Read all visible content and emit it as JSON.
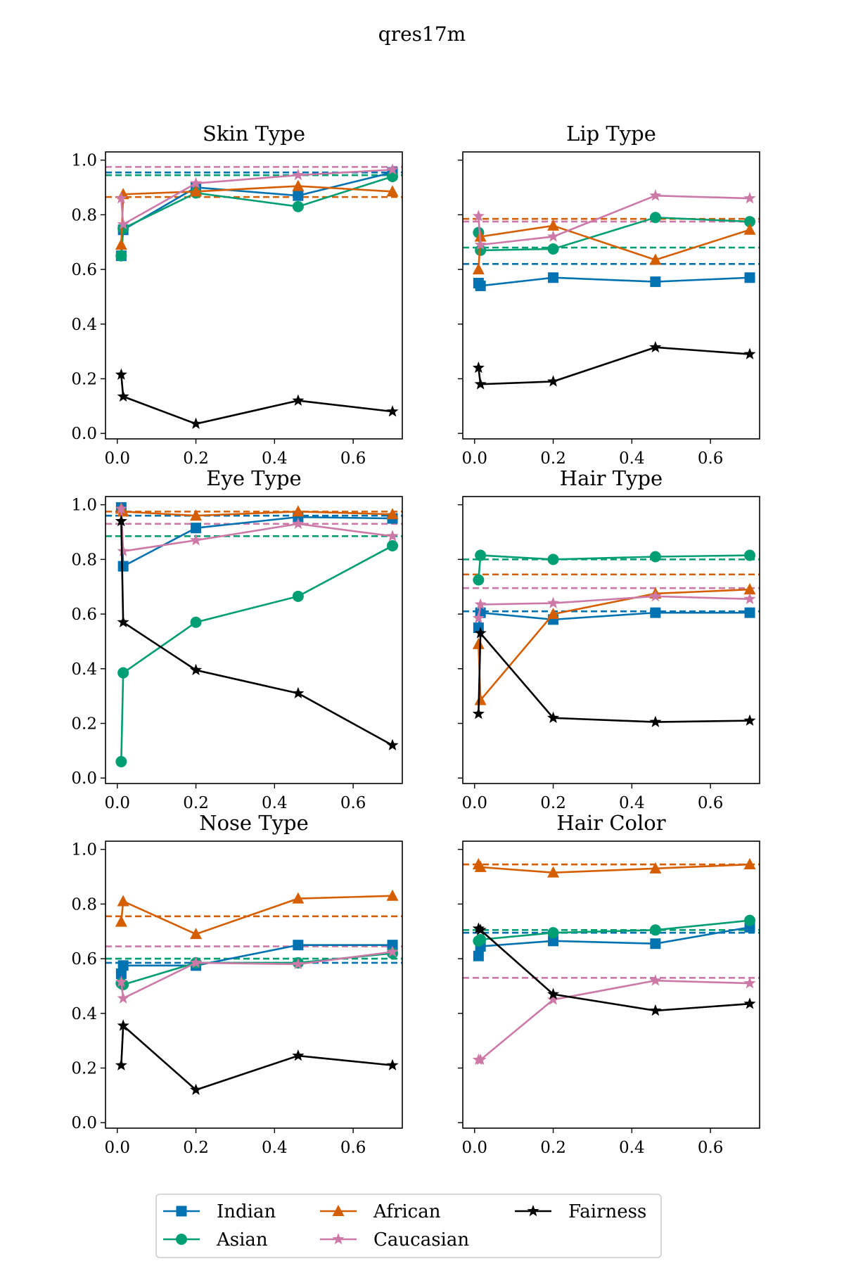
{
  "figure": {
    "title": "qres17m"
  },
  "legend": {
    "placement": "bottom-center",
    "columns": 3,
    "items": [
      {
        "name": "Indian",
        "color": "#0072b2",
        "marker": "square"
      },
      {
        "name": "African",
        "color": "#d55e00",
        "marker": "triangle"
      },
      {
        "name": "Fairness",
        "color": "#000000",
        "marker": "star"
      },
      {
        "name": "Asian",
        "color": "#009e73",
        "marker": "circle"
      },
      {
        "name": "Caucasian",
        "color": "#cc79a7",
        "marker": "star"
      }
    ]
  },
  "chart_data": [
    {
      "type": "line",
      "title": "Skin Type",
      "xlim": [
        -0.03,
        0.725
      ],
      "ylim": [
        -0.02,
        1.03
      ],
      "xticks": [
        "0.0",
        "0.2",
        "0.4",
        "0.6"
      ],
      "yticks": [
        "0.0",
        "0.2",
        "0.4",
        "0.6",
        "0.8",
        "1.0"
      ],
      "x": [
        0.01,
        0.015,
        0.2,
        0.46,
        0.7
      ],
      "series": [
        {
          "name": "Indian",
          "values": [
            0.65,
            0.745,
            0.9,
            0.87,
            0.955
          ],
          "baseline": 0.955
        },
        {
          "name": "Asian",
          "values": [
            0.65,
            0.75,
            0.88,
            0.83,
            0.94
          ],
          "baseline": 0.945
        },
        {
          "name": "African",
          "values": [
            0.69,
            0.875,
            0.885,
            0.905,
            0.885
          ],
          "baseline": 0.865
        },
        {
          "name": "Caucasian",
          "values": [
            0.86,
            0.765,
            0.915,
            0.945,
            0.965
          ],
          "baseline": 0.975
        },
        {
          "name": "Fairness",
          "values": [
            0.215,
            0.135,
            0.035,
            0.12,
            0.08
          ]
        }
      ]
    },
    {
      "type": "line",
      "title": "Lip Type",
      "xlim": [
        -0.03,
        0.725
      ],
      "ylim": [
        -0.02,
        1.03
      ],
      "xticks": [
        "0.0",
        "0.2",
        "0.4",
        "0.6"
      ],
      "yticks": [
        "0.0",
        "0.2",
        "0.4",
        "0.6",
        "0.8",
        "1.0"
      ],
      "x": [
        0.01,
        0.015,
        0.2,
        0.46,
        0.7
      ],
      "series": [
        {
          "name": "Indian",
          "values": [
            0.55,
            0.54,
            0.57,
            0.555,
            0.57
          ],
          "baseline": 0.62
        },
        {
          "name": "Asian",
          "values": [
            0.735,
            0.67,
            0.675,
            0.79,
            0.775
          ],
          "baseline": 0.68
        },
        {
          "name": "African",
          "values": [
            0.6,
            0.72,
            0.76,
            0.635,
            0.745
          ],
          "baseline": 0.785
        },
        {
          "name": "Caucasian",
          "values": [
            0.795,
            0.69,
            0.72,
            0.87,
            0.86
          ],
          "baseline": 0.775
        },
        {
          "name": "Fairness",
          "values": [
            0.24,
            0.18,
            0.19,
            0.315,
            0.29
          ]
        }
      ]
    },
    {
      "type": "line",
      "title": "Eye Type",
      "xlim": [
        -0.03,
        0.725
      ],
      "ylim": [
        -0.02,
        1.03
      ],
      "xticks": [
        "0.0",
        "0.2",
        "0.4",
        "0.6"
      ],
      "yticks": [
        "0.0",
        "0.2",
        "0.4",
        "0.6",
        "0.8",
        "1.0"
      ],
      "x": [
        0.01,
        0.015,
        0.2,
        0.46,
        0.7
      ],
      "series": [
        {
          "name": "Indian",
          "values": [
            0.99,
            0.775,
            0.915,
            0.955,
            0.95
          ],
          "baseline": 0.96
        },
        {
          "name": "Asian",
          "values": [
            0.06,
            0.385,
            0.57,
            0.665,
            0.85
          ],
          "baseline": 0.885
        },
        {
          "name": "African",
          "values": [
            0.985,
            0.975,
            0.96,
            0.975,
            0.965
          ],
          "baseline": 0.975
        },
        {
          "name": "Caucasian",
          "values": [
            0.985,
            0.83,
            0.87,
            0.93,
            0.885
          ],
          "baseline": 0.93
        },
        {
          "name": "Fairness",
          "values": [
            0.94,
            0.57,
            0.395,
            0.31,
            0.12
          ]
        }
      ]
    },
    {
      "type": "line",
      "title": "Hair Type",
      "xlim": [
        -0.03,
        0.725
      ],
      "ylim": [
        -0.02,
        1.03
      ],
      "xticks": [
        "0.0",
        "0.2",
        "0.4",
        "0.6"
      ],
      "yticks": [
        "0.0",
        "0.2",
        "0.4",
        "0.6",
        "0.8",
        "1.0"
      ],
      "x": [
        0.01,
        0.015,
        0.2,
        0.46,
        0.7
      ],
      "series": [
        {
          "name": "Indian",
          "values": [
            0.55,
            0.605,
            0.58,
            0.605,
            0.605
          ],
          "baseline": 0.61
        },
        {
          "name": "Asian",
          "values": [
            0.725,
            0.815,
            0.8,
            0.81,
            0.815
          ],
          "baseline": 0.8
        },
        {
          "name": "African",
          "values": [
            0.49,
            0.285,
            0.6,
            0.675,
            0.69
          ],
          "baseline": 0.745
        },
        {
          "name": "Caucasian",
          "values": [
            0.585,
            0.635,
            0.64,
            0.665,
            0.655
          ],
          "baseline": 0.695
        },
        {
          "name": "Fairness",
          "values": [
            0.235,
            0.53,
            0.22,
            0.205,
            0.21
          ]
        }
      ]
    },
    {
      "type": "line",
      "title": "Nose Type",
      "xlim": [
        -0.03,
        0.725
      ],
      "ylim": [
        -0.02,
        1.03
      ],
      "xticks": [
        "0.0",
        "0.2",
        "0.4",
        "0.6"
      ],
      "yticks": [
        "0.0",
        "0.2",
        "0.4",
        "0.6",
        "0.8",
        "1.0"
      ],
      "x": [
        0.01,
        0.015,
        0.2,
        0.46,
        0.7
      ],
      "series": [
        {
          "name": "Indian",
          "values": [
            0.545,
            0.575,
            0.575,
            0.65,
            0.65
          ],
          "baseline": 0.585
        },
        {
          "name": "Asian",
          "values": [
            0.51,
            0.505,
            0.585,
            0.585,
            0.62
          ],
          "baseline": 0.6
        },
        {
          "name": "African",
          "values": [
            0.735,
            0.81,
            0.69,
            0.82,
            0.83
          ],
          "baseline": 0.755
        },
        {
          "name": "Caucasian",
          "values": [
            0.515,
            0.455,
            0.585,
            0.58,
            0.625
          ],
          "baseline": 0.645
        },
        {
          "name": "Fairness",
          "values": [
            0.21,
            0.355,
            0.12,
            0.245,
            0.21
          ]
        }
      ]
    },
    {
      "type": "line",
      "title": "Hair Color",
      "xlim": [
        -0.03,
        0.725
      ],
      "ylim": [
        -0.02,
        1.03
      ],
      "xticks": [
        "0.0",
        "0.2",
        "0.4",
        "0.6"
      ],
      "yticks": [
        "0.0",
        "0.2",
        "0.4",
        "0.6",
        "0.8",
        "1.0"
      ],
      "x": [
        0.01,
        0.015,
        0.2,
        0.46,
        0.7
      ],
      "series": [
        {
          "name": "Indian",
          "values": [
            0.61,
            0.645,
            0.665,
            0.655,
            0.715
          ],
          "baseline": 0.695
        },
        {
          "name": "Asian",
          "values": [
            0.665,
            0.67,
            0.695,
            0.705,
            0.74
          ],
          "baseline": 0.705
        },
        {
          "name": "African",
          "values": [
            0.945,
            0.935,
            0.915,
            0.93,
            0.945
          ],
          "baseline": 0.945
        },
        {
          "name": "Caucasian",
          "values": [
            0.23,
            0.23,
            0.45,
            0.52,
            0.51
          ],
          "baseline": 0.53
        },
        {
          "name": "Fairness",
          "values": [
            0.71,
            0.705,
            0.47,
            0.41,
            0.435
          ]
        }
      ]
    }
  ]
}
